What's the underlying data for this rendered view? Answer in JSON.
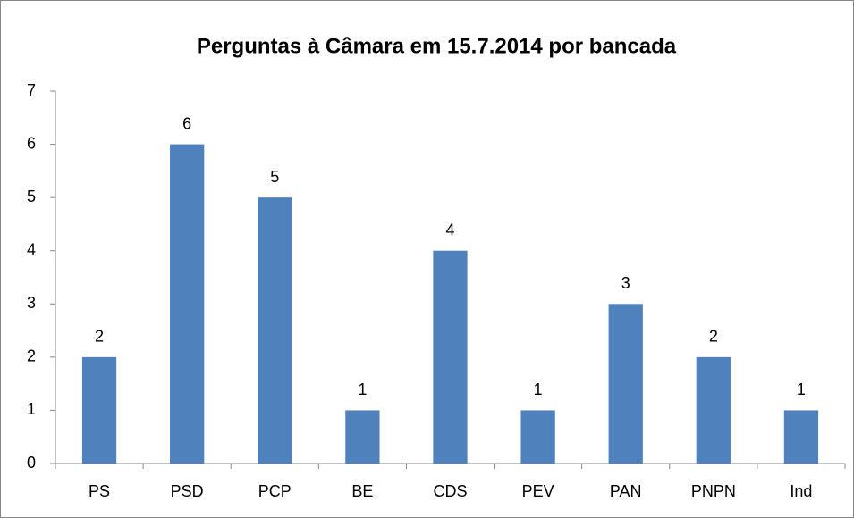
{
  "chart_data": {
    "type": "bar",
    "title": "Perguntas à Câmara em 15.7.2014 por bancada",
    "categories": [
      "PS",
      "PSD",
      "PCP",
      "BE",
      "CDS",
      "PEV",
      "PAN",
      "PNPN",
      "Ind"
    ],
    "values": [
      2,
      6,
      5,
      1,
      4,
      1,
      3,
      2,
      1
    ],
    "color": "#4f81bd",
    "ylim": [
      0,
      7
    ],
    "yticks": [
      0,
      1,
      2,
      3,
      4,
      5,
      6,
      7
    ],
    "grid": false
  }
}
